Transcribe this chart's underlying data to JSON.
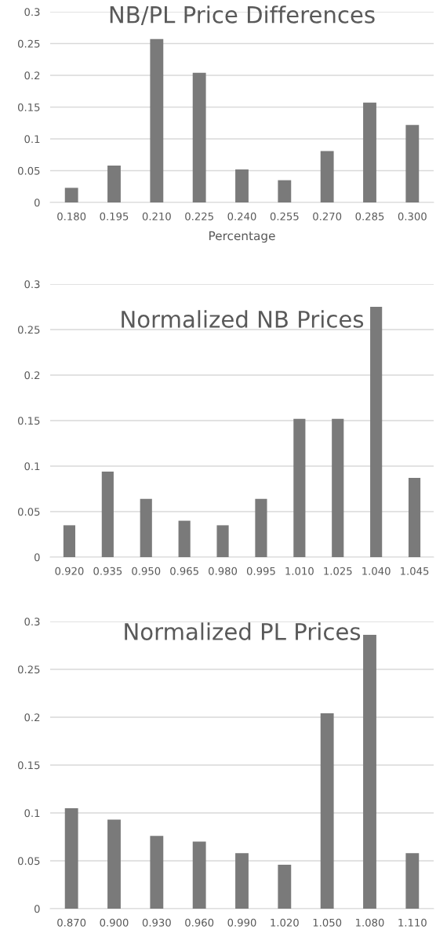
{
  "chart_data": [
    {
      "type": "bar",
      "title": "NB/PL Price Differences",
      "xlabel": "Percentage",
      "categories": [
        "0.180",
        "0.195",
        "0.210",
        "0.225",
        "0.240",
        "0.255",
        "0.270",
        "0.285",
        "0.300"
      ],
      "values": [
        0.023,
        0.058,
        0.257,
        0.204,
        0.052,
        0.035,
        0.081,
        0.157,
        0.122
      ],
      "color": "#7a7a7a",
      "ylim": [
        0,
        0.3
      ],
      "yticks": [
        0,
        0.05,
        0.1,
        0.15,
        0.2,
        0.25,
        0.3
      ],
      "grid": "y",
      "legend": false
    },
    {
      "type": "bar",
      "title": "Normalized NB Prices",
      "categories": [
        "0.920",
        "0.935",
        "0.950",
        "0.965",
        "0.980",
        "0.995",
        "1.010",
        "1.025",
        "1.040",
        "1.045"
      ],
      "values": [
        0.035,
        0.094,
        0.064,
        0.04,
        0.035,
        0.064,
        0.152,
        0.152,
        0.275,
        0.087
      ],
      "color": "#7a7a7a",
      "ylim": [
        0,
        0.3
      ],
      "yticks": [
        0,
        0.05,
        0.1,
        0.15,
        0.2,
        0.25,
        0.3
      ],
      "grid": "y",
      "legend": false
    },
    {
      "type": "bar",
      "title": "Normalized PL Prices",
      "categories": [
        "0.870",
        "0.900",
        "0.930",
        "0.960",
        "0.990",
        "1.020",
        "1.050",
        "1.080",
        "1.110"
      ],
      "values": [
        0.105,
        0.093,
        0.076,
        0.07,
        0.058,
        0.046,
        0.204,
        0.286,
        0.058
      ],
      "color": "#7a7a7a",
      "ylim": [
        0,
        0.3
      ],
      "yticks": [
        0,
        0.05,
        0.1,
        0.15,
        0.2,
        0.25,
        0.3
      ],
      "grid": "y",
      "legend": false
    }
  ]
}
